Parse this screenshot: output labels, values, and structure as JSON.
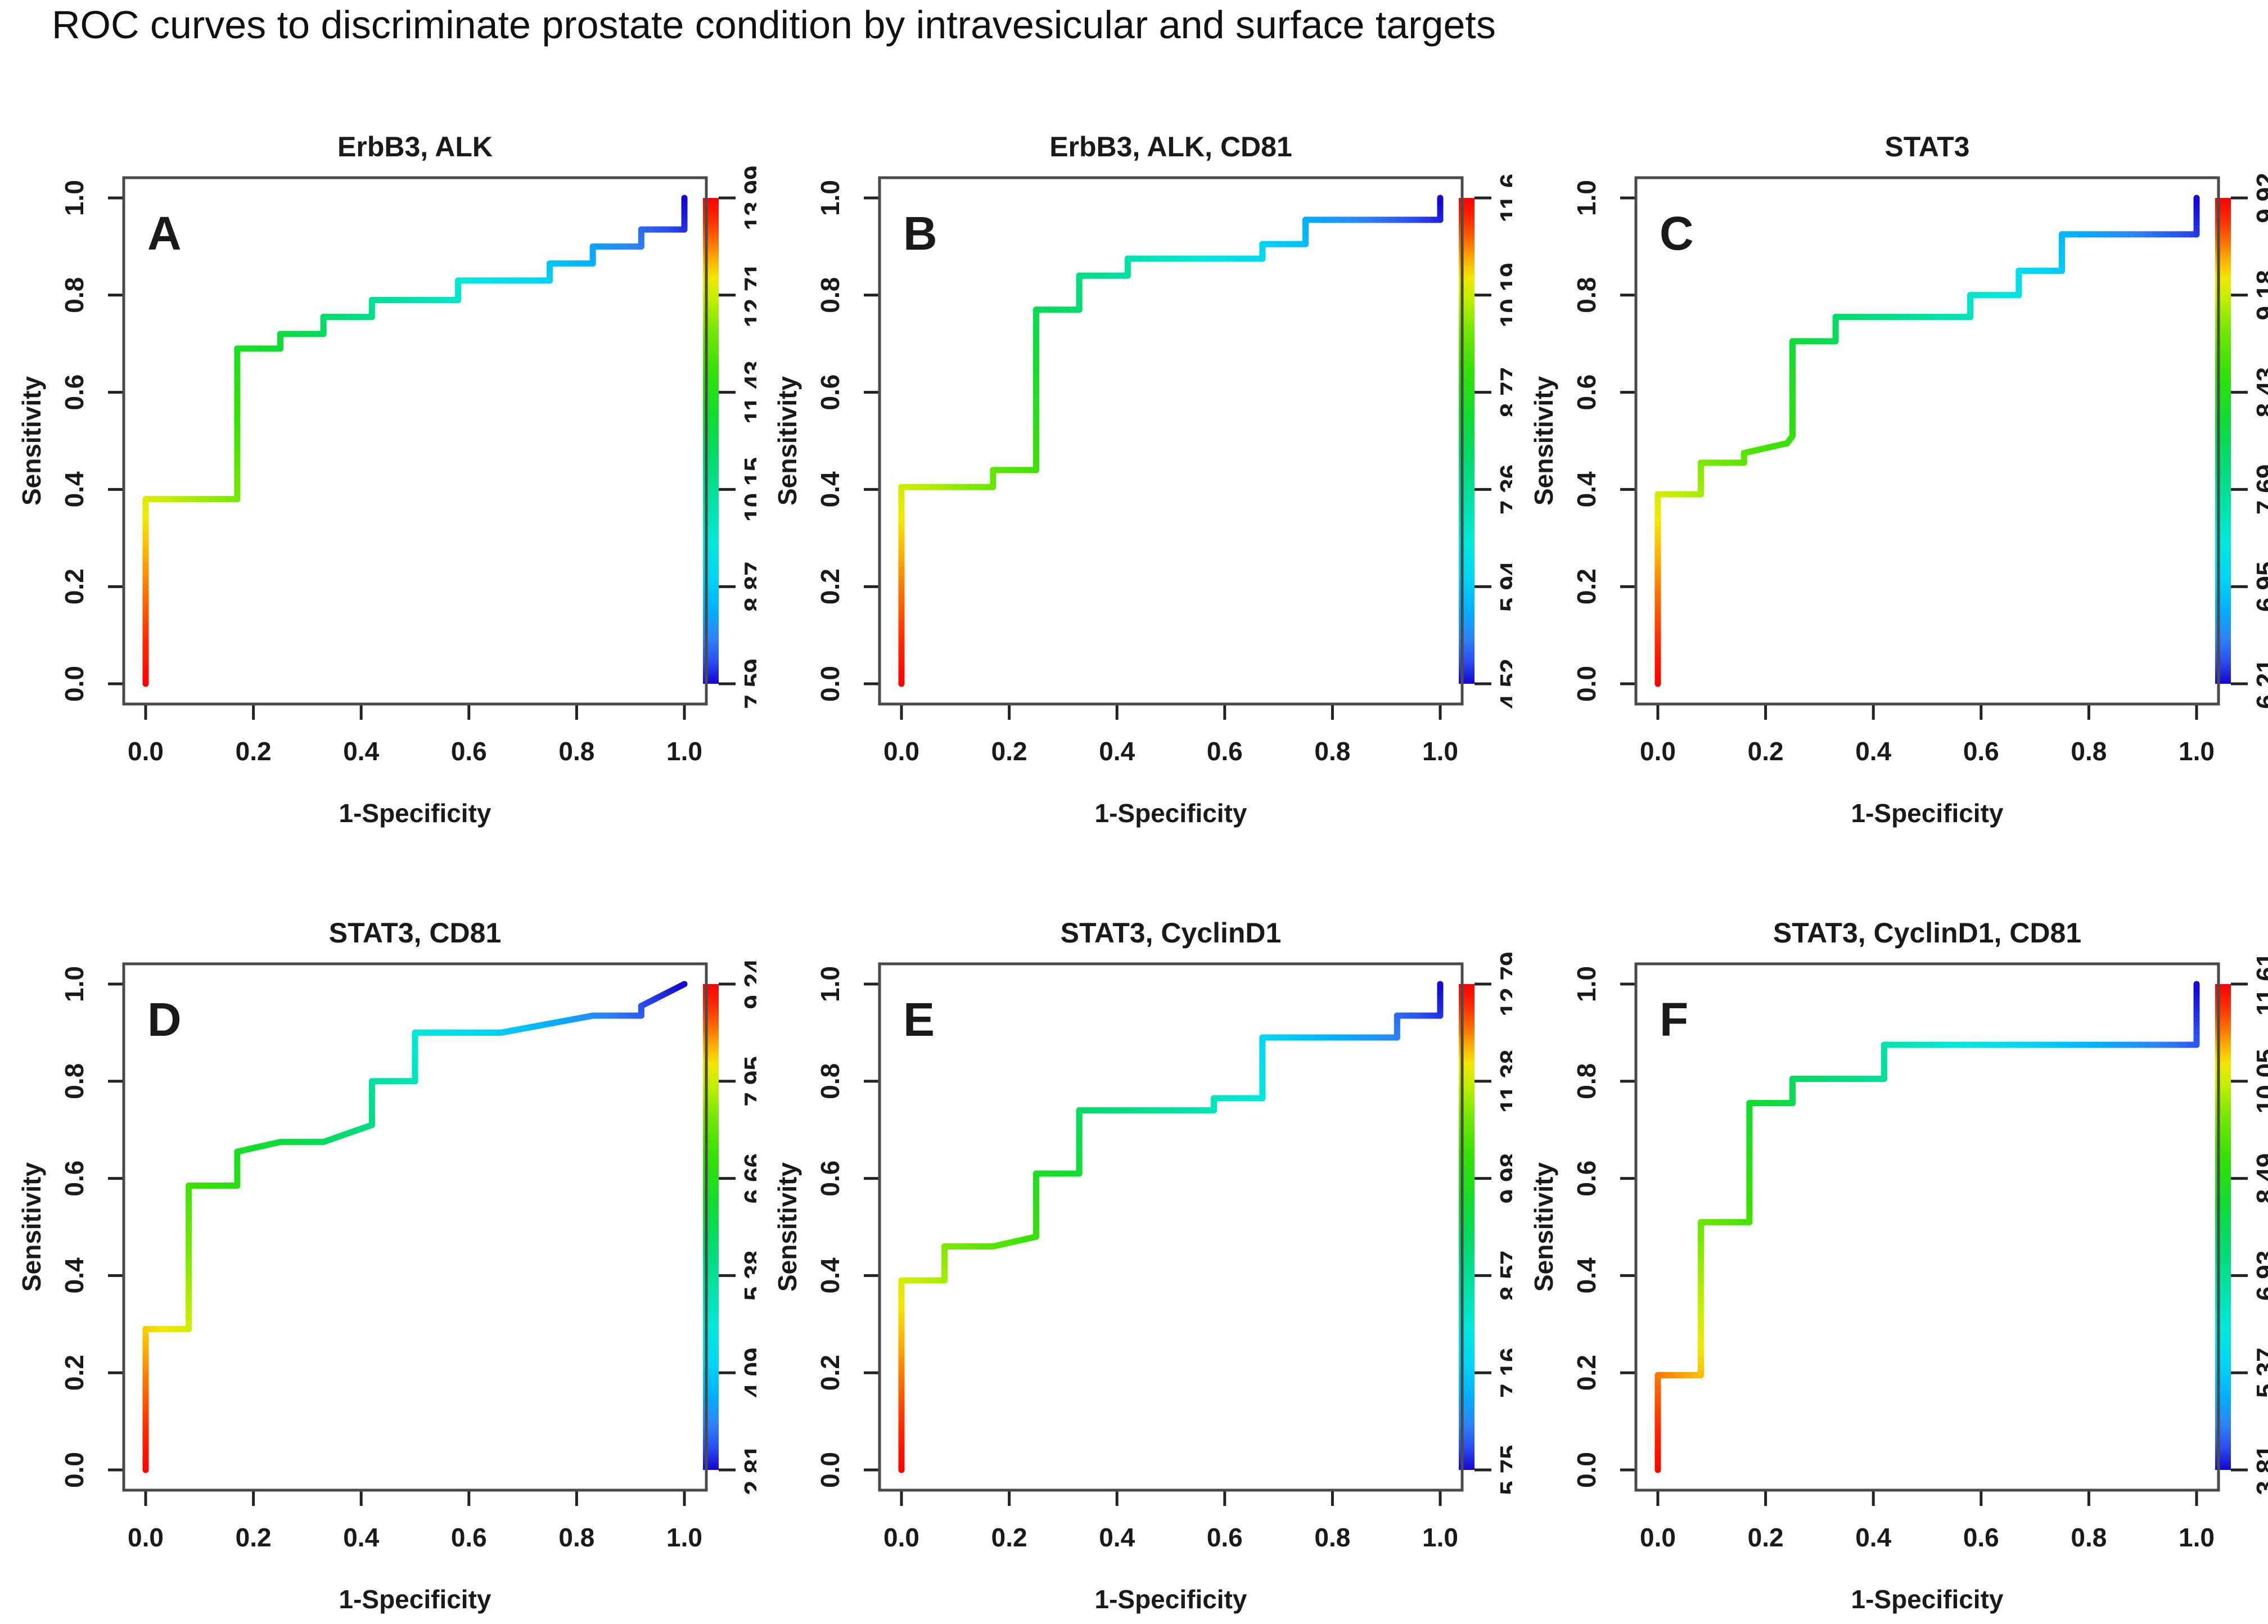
{
  "figure": {
    "title": "ROC curves to discriminate prostate condition by intravesicular and surface targets"
  },
  "axes": {
    "x_label": "1-Specificity",
    "y_label": "Sensitivity",
    "x_ticks": [
      "0.0",
      "0.2",
      "0.4",
      "0.6",
      "0.8",
      "1.0"
    ],
    "y_ticks": [
      "0.0",
      "0.2",
      "0.4",
      "0.6",
      "0.8",
      "1.0"
    ]
  },
  "colormap": {
    "description": "threshold colorbar, top=high threshold (red) to bottom=low threshold (blue)",
    "stops": [
      [
        0.0,
        "#fe0000"
      ],
      [
        0.045,
        "#fe2c00"
      ],
      [
        0.09,
        "#fd6f01"
      ],
      [
        0.13,
        "#fdb300"
      ],
      [
        0.165,
        "#f2e800"
      ],
      [
        0.21,
        "#bfee00"
      ],
      [
        0.27,
        "#78e800"
      ],
      [
        0.35,
        "#38e203"
      ],
      [
        0.45,
        "#10dd2e"
      ],
      [
        0.54,
        "#00dc6e"
      ],
      [
        0.63,
        "#00e2a8"
      ],
      [
        0.71,
        "#00e8dc"
      ],
      [
        0.78,
        "#00d5f4"
      ],
      [
        0.845,
        "#00b2fe"
      ],
      [
        0.905,
        "#2c85f8"
      ],
      [
        0.955,
        "#2a4df0"
      ],
      [
        1.0,
        "#1405d2"
      ]
    ]
  },
  "chart_data": [
    {
      "type": "line",
      "subtype": "roc-step-curve",
      "panel": "A",
      "title": "ErbB3, ALK",
      "xlabel": "1-Specificity",
      "ylabel": "Sensitivity",
      "xlim": [
        0,
        1
      ],
      "ylim": [
        0,
        1
      ],
      "colorbar_ticks": [
        "13.99",
        "12.71",
        "11.43",
        "10.15",
        "8.87",
        "7.59"
      ],
      "curve": [
        [
          0,
          0
        ],
        [
          0,
          0.38
        ],
        [
          0.17,
          0.38
        ],
        [
          0.17,
          0.69
        ],
        [
          0.25,
          0.69
        ],
        [
          0.25,
          0.72
        ],
        [
          0.33,
          0.72
        ],
        [
          0.33,
          0.755
        ],
        [
          0.42,
          0.755
        ],
        [
          0.42,
          0.79
        ],
        [
          0.58,
          0.79
        ],
        [
          0.58,
          0.83
        ],
        [
          0.75,
          0.83
        ],
        [
          0.75,
          0.865
        ],
        [
          0.83,
          0.865
        ],
        [
          0.83,
          0.9
        ],
        [
          0.92,
          0.9
        ],
        [
          0.92,
          0.935
        ],
        [
          1.0,
          0.935
        ],
        [
          1.0,
          1.0
        ]
      ]
    },
    {
      "type": "line",
      "subtype": "roc-step-curve",
      "panel": "B",
      "title": "ErbB3, ALK, CD81",
      "xlabel": "1-Specificity",
      "ylabel": "Sensitivity",
      "xlim": [
        0,
        1
      ],
      "ylim": [
        0,
        1
      ],
      "colorbar_ticks": [
        "11.6",
        "10.19",
        "8.77",
        "7.36",
        "5.94",
        "4.52"
      ],
      "curve": [
        [
          0,
          0
        ],
        [
          0,
          0.405
        ],
        [
          0.17,
          0.405
        ],
        [
          0.17,
          0.44
        ],
        [
          0.25,
          0.44
        ],
        [
          0.25,
          0.77
        ],
        [
          0.33,
          0.77
        ],
        [
          0.33,
          0.84
        ],
        [
          0.42,
          0.84
        ],
        [
          0.42,
          0.875
        ],
        [
          0.67,
          0.875
        ],
        [
          0.67,
          0.905
        ],
        [
          0.75,
          0.905
        ],
        [
          0.75,
          0.955
        ],
        [
          1.0,
          0.955
        ],
        [
          1.0,
          1.0
        ]
      ]
    },
    {
      "type": "line",
      "subtype": "roc-step-curve",
      "panel": "C",
      "title": "STAT3",
      "xlabel": "1-Specificity",
      "ylabel": "Sensitivity",
      "xlim": [
        0,
        1
      ],
      "ylim": [
        0,
        1
      ],
      "colorbar_ticks": [
        "9.92",
        "9.18",
        "8.43",
        "7.69",
        "6.95",
        "6.21"
      ],
      "curve": [
        [
          0,
          0
        ],
        [
          0,
          0.39
        ],
        [
          0.08,
          0.39
        ],
        [
          0.08,
          0.455
        ],
        [
          0.16,
          0.455
        ],
        [
          0.16,
          0.475
        ],
        [
          0.24,
          0.495
        ],
        [
          0.25,
          0.51
        ],
        [
          0.25,
          0.705
        ],
        [
          0.33,
          0.705
        ],
        [
          0.33,
          0.755
        ],
        [
          0.58,
          0.755
        ],
        [
          0.58,
          0.8
        ],
        [
          0.67,
          0.8
        ],
        [
          0.67,
          0.85
        ],
        [
          0.75,
          0.85
        ],
        [
          0.75,
          0.925
        ],
        [
          1.0,
          0.925
        ],
        [
          1.0,
          1.0
        ]
      ]
    },
    {
      "type": "line",
      "subtype": "roc-step-curve",
      "panel": "D",
      "title": "STAT3, CD81",
      "xlabel": "1-Specificity",
      "ylabel": "Sensitivity",
      "xlim": [
        0,
        1
      ],
      "ylim": [
        0,
        1
      ],
      "colorbar_ticks": [
        "9.24",
        "7.95",
        "6.66",
        "5.38",
        "4.09",
        "2.81"
      ],
      "curve": [
        [
          0,
          0
        ],
        [
          0,
          0.29
        ],
        [
          0.08,
          0.29
        ],
        [
          0.08,
          0.585
        ],
        [
          0.17,
          0.585
        ],
        [
          0.17,
          0.655
        ],
        [
          0.25,
          0.675
        ],
        [
          0.33,
          0.675
        ],
        [
          0.42,
          0.71
        ],
        [
          0.42,
          0.8
        ],
        [
          0.5,
          0.8
        ],
        [
          0.5,
          0.9
        ],
        [
          0.66,
          0.9
        ],
        [
          0.83,
          0.935
        ],
        [
          0.92,
          0.935
        ],
        [
          0.92,
          0.955
        ],
        [
          1.0,
          1.0
        ]
      ]
    },
    {
      "type": "line",
      "subtype": "roc-step-curve",
      "panel": "E",
      "title": "STAT3, CyclinD1",
      "xlabel": "1-Specificity",
      "ylabel": "Sensitivity",
      "xlim": [
        0,
        1
      ],
      "ylim": [
        0,
        1
      ],
      "colorbar_ticks": [
        "12.79",
        "11.38",
        "9.98",
        "8.57",
        "7.16",
        "5.75"
      ],
      "curve": [
        [
          0,
          0
        ],
        [
          0,
          0.39
        ],
        [
          0.08,
          0.39
        ],
        [
          0.08,
          0.46
        ],
        [
          0.17,
          0.46
        ],
        [
          0.25,
          0.48
        ],
        [
          0.25,
          0.61
        ],
        [
          0.33,
          0.61
        ],
        [
          0.33,
          0.74
        ],
        [
          0.58,
          0.74
        ],
        [
          0.58,
          0.765
        ],
        [
          0.67,
          0.765
        ],
        [
          0.67,
          0.89
        ],
        [
          0.92,
          0.89
        ],
        [
          0.92,
          0.935
        ],
        [
          1.0,
          0.935
        ],
        [
          1.0,
          1.0
        ]
      ]
    },
    {
      "type": "line",
      "subtype": "roc-step-curve",
      "panel": "F",
      "title": "STAT3, CyclinD1, CD81",
      "xlabel": "1-Specificity",
      "ylabel": "Sensitivity",
      "xlim": [
        0,
        1
      ],
      "ylim": [
        0,
        1
      ],
      "colorbar_ticks": [
        "11.61",
        "10.05",
        "8.49",
        "6.93",
        "5.37",
        "3.81"
      ],
      "curve": [
        [
          0,
          0
        ],
        [
          0,
          0.195
        ],
        [
          0.08,
          0.195
        ],
        [
          0.08,
          0.51
        ],
        [
          0.17,
          0.51
        ],
        [
          0.17,
          0.755
        ],
        [
          0.25,
          0.755
        ],
        [
          0.25,
          0.805
        ],
        [
          0.42,
          0.805
        ],
        [
          0.42,
          0.875
        ],
        [
          1.0,
          0.875
        ],
        [
          1.0,
          1.0
        ]
      ]
    }
  ]
}
